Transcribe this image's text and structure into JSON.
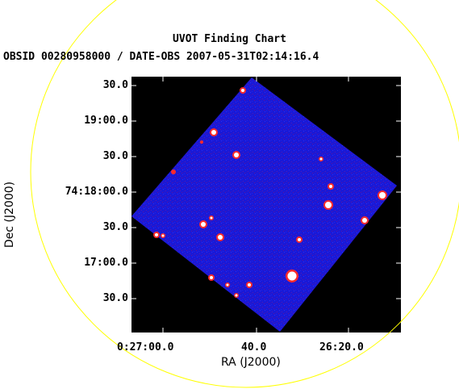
{
  "title": "UVOT Finding Chart",
  "subtitle": "OBSID 00280958000 / DATE-OBS 2007-05-31T02:14:16.4",
  "axes": {
    "xlabel": "RA (J2000)",
    "ylabel": "Dec (J2000)",
    "xticks": [
      "0:27:00.0",
      "40.0",
      "26:20.0"
    ],
    "yticks": [
      "30.0",
      "19:00.0",
      "30.0",
      "74:18:00.0",
      "30.0",
      "17:00.0",
      "30.0"
    ]
  },
  "colors": {
    "frame_background": "#000000",
    "image_field": "#1a1ad8",
    "circle": "#ffff00",
    "bright_source": "#ffffff",
    "source_halo": "#ff2a2a"
  }
}
